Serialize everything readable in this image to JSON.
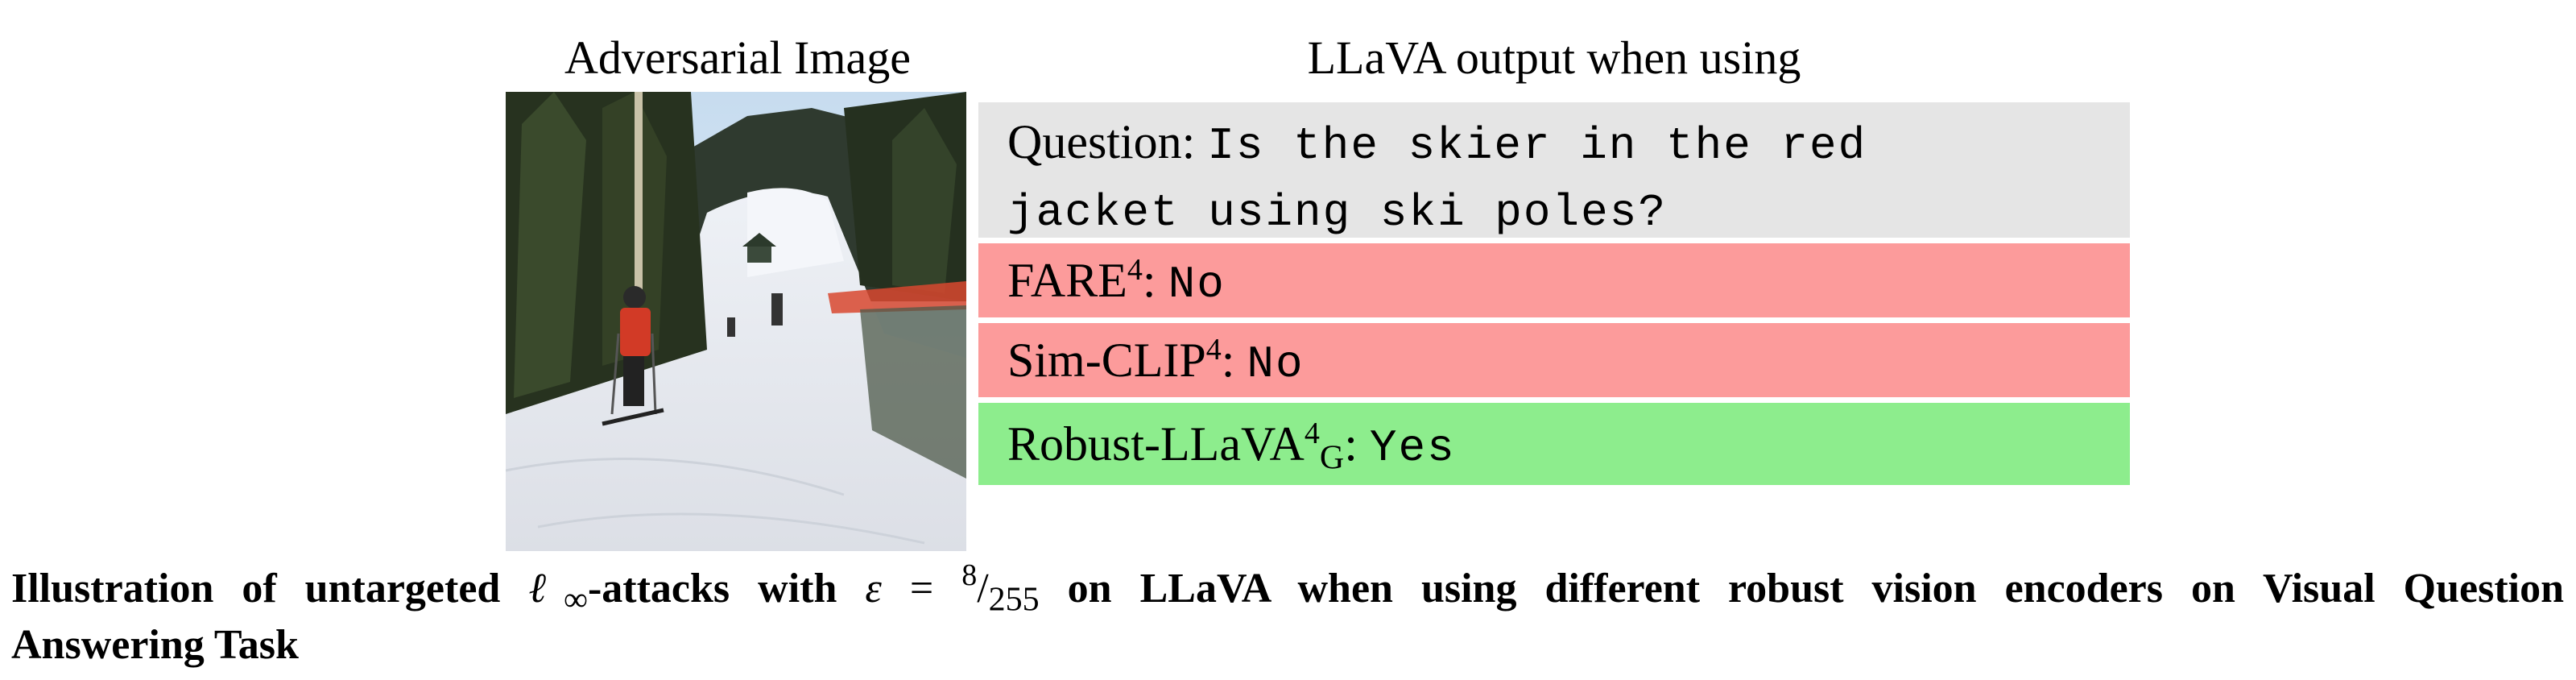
{
  "headers": {
    "adversarial": "Adversarial Image",
    "output": "LLaVA output when using"
  },
  "question": {
    "label": "Question:",
    "text_line1": "Is the skier in the red",
    "text_line2": "jacket using ski poles?"
  },
  "rows": [
    {
      "name": "FARE",
      "sup": "4",
      "sub": "",
      "answer": "No",
      "color": "#fc9b9b"
    },
    {
      "name": "Sim-CLIP",
      "sup": "4",
      "sub": "",
      "answer": "No",
      "color": "#fc9b9b"
    },
    {
      "name": "Robust-LLaVA",
      "sup": "4",
      "sub": "G",
      "answer": "Yes",
      "color": "#8ded8d"
    }
  ],
  "caption": {
    "part1": "Illustration of untargeted",
    "ell": "ℓ",
    "inf": "∞",
    "part2": "-attacks with",
    "eps": "ε",
    "eq": "=",
    "num": "8",
    "den": "255",
    "part3": "on LLaVA when using different robust vision encoders on Visual Question",
    "line2": "Answering Task"
  }
}
